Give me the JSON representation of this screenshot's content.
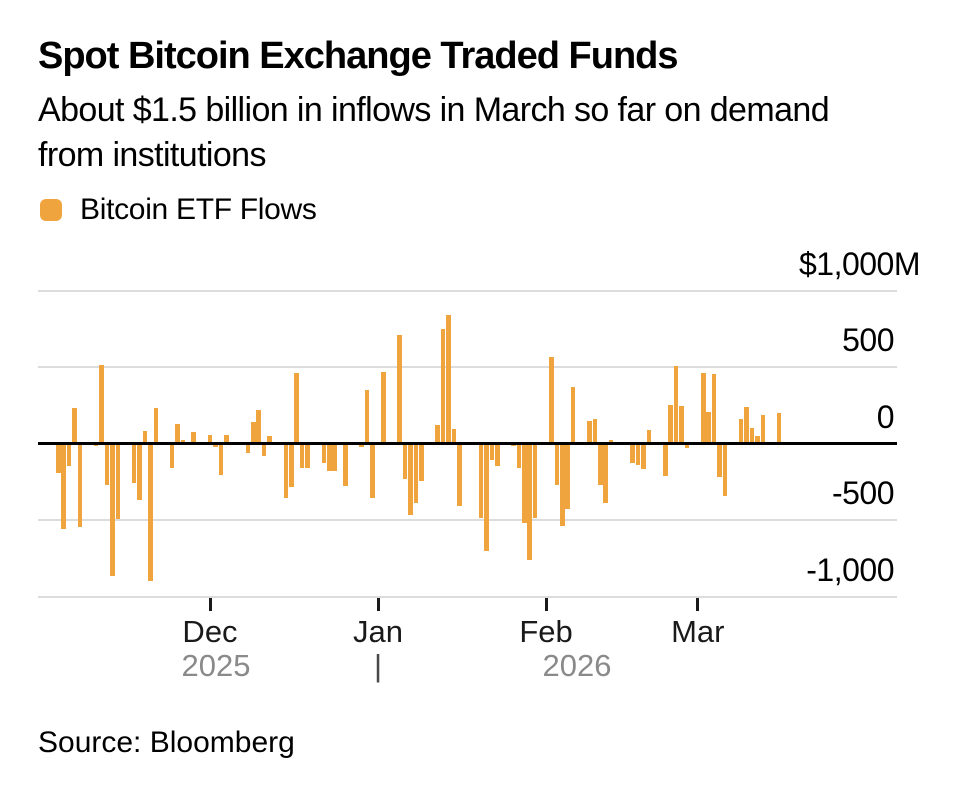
{
  "header": {
    "title": "Spot Bitcoin Exchange Traded Funds",
    "subtitle_lines": [
      "About $1.5 billion in inflows in March so far on demand",
      "from institutions"
    ]
  },
  "legend": {
    "label": "Bitcoin ETF Flows"
  },
  "footer": {
    "source": "Source: Bloomberg"
  },
  "colors": {
    "bar": "#F0A43E",
    "grid": "#DCDCDC",
    "zero_line": "#000000",
    "axis_text": "#1A1A1A",
    "year_text": "#8A8A8A"
  },
  "chart_data": {
    "type": "bar",
    "title": "Spot Bitcoin Exchange Traded Funds",
    "series_name": "Bitcoin ETF Flows",
    "unit": "USD millions (daily net flow)",
    "ylabel": "",
    "xlabel": "",
    "ylim": [
      -1150,
      1075
    ],
    "grid": true,
    "legend_position": "top-left",
    "yticks": [
      {
        "value": 1000,
        "label": "$1,000M"
      },
      {
        "value": 500,
        "label": "500"
      },
      {
        "value": 0,
        "label": "0"
      },
      {
        "value": -500,
        "label": "-500"
      },
      {
        "value": -1000,
        "label": "-1,000"
      }
    ],
    "xticks": [
      {
        "label": "Dec",
        "date": "2025-12-01"
      },
      {
        "label": "Jan",
        "date": "2026-01-01"
      },
      {
        "label": "Feb",
        "date": "2026-02-01"
      },
      {
        "label": "Mar",
        "date": "2026-03-01"
      }
    ],
    "year_row": {
      "left": "2025",
      "divider": "|",
      "right": "2026"
    },
    "points": [
      {
        "date": "2025-11-03",
        "value": -190
      },
      {
        "date": "2025-11-04",
        "value": -560
      },
      {
        "date": "2025-11-05",
        "value": -145
      },
      {
        "date": "2025-11-06",
        "value": 235
      },
      {
        "date": "2025-11-07",
        "value": -545
      },
      {
        "date": "2025-11-10",
        "value": -15
      },
      {
        "date": "2025-11-11",
        "value": 515
      },
      {
        "date": "2025-11-12",
        "value": -272
      },
      {
        "date": "2025-11-13",
        "value": -868
      },
      {
        "date": "2025-11-14",
        "value": -492
      },
      {
        "date": "2025-11-17",
        "value": -256
      },
      {
        "date": "2025-11-18",
        "value": -372
      },
      {
        "date": "2025-11-19",
        "value": 84
      },
      {
        "date": "2025-11-20",
        "value": -897
      },
      {
        "date": "2025-11-21",
        "value": 230
      },
      {
        "date": "2025-11-24",
        "value": -158
      },
      {
        "date": "2025-11-25",
        "value": 130
      },
      {
        "date": "2025-11-26",
        "value": 25
      },
      {
        "date": "2025-11-28",
        "value": 74
      },
      {
        "date": "2025-12-01",
        "value": 56
      },
      {
        "date": "2025-12-02",
        "value": -25
      },
      {
        "date": "2025-12-03",
        "value": -205
      },
      {
        "date": "2025-12-04",
        "value": 58
      },
      {
        "date": "2025-12-05",
        "value": -10
      },
      {
        "date": "2025-12-08",
        "value": -60
      },
      {
        "date": "2025-12-09",
        "value": 142
      },
      {
        "date": "2025-12-10",
        "value": 222
      },
      {
        "date": "2025-12-11",
        "value": -80
      },
      {
        "date": "2025-12-12",
        "value": 46
      },
      {
        "date": "2025-12-15",
        "value": -358
      },
      {
        "date": "2025-12-16",
        "value": -282
      },
      {
        "date": "2025-12-17",
        "value": 458
      },
      {
        "date": "2025-12-18",
        "value": -162
      },
      {
        "date": "2025-12-19",
        "value": -162
      },
      {
        "date": "2025-12-22",
        "value": -130
      },
      {
        "date": "2025-12-23",
        "value": -178
      },
      {
        "date": "2025-12-24",
        "value": -180
      },
      {
        "date": "2025-12-26",
        "value": -276
      },
      {
        "date": "2025-12-29",
        "value": -20
      },
      {
        "date": "2025-12-30",
        "value": 350
      },
      {
        "date": "2025-12-31",
        "value": -356
      },
      {
        "date": "2026-01-02",
        "value": 468
      },
      {
        "date": "2026-01-05",
        "value": 712
      },
      {
        "date": "2026-01-06",
        "value": -235
      },
      {
        "date": "2026-01-07",
        "value": -470
      },
      {
        "date": "2026-01-08",
        "value": -388
      },
      {
        "date": "2026-01-09",
        "value": -246
      },
      {
        "date": "2026-01-12",
        "value": 118
      },
      {
        "date": "2026-01-13",
        "value": 750
      },
      {
        "date": "2026-01-14",
        "value": 842
      },
      {
        "date": "2026-01-15",
        "value": 96
      },
      {
        "date": "2026-01-16",
        "value": -410
      },
      {
        "date": "2026-01-20",
        "value": -486
      },
      {
        "date": "2026-01-21",
        "value": -704
      },
      {
        "date": "2026-01-22",
        "value": -105
      },
      {
        "date": "2026-01-23",
        "value": -148
      },
      {
        "date": "2026-01-26",
        "value": -15
      },
      {
        "date": "2026-01-27",
        "value": -160
      },
      {
        "date": "2026-01-28",
        "value": -519
      },
      {
        "date": "2026-01-29",
        "value": -760
      },
      {
        "date": "2026-01-30",
        "value": -486
      },
      {
        "date": "2026-02-02",
        "value": 564
      },
      {
        "date": "2026-02-03",
        "value": -274
      },
      {
        "date": "2026-02-04",
        "value": -540
      },
      {
        "date": "2026-02-05",
        "value": -427
      },
      {
        "date": "2026-02-06",
        "value": 370
      },
      {
        "date": "2026-02-09",
        "value": 146
      },
      {
        "date": "2026-02-10",
        "value": 161
      },
      {
        "date": "2026-02-11",
        "value": -268
      },
      {
        "date": "2026-02-12",
        "value": -388
      },
      {
        "date": "2026-02-13",
        "value": 25
      },
      {
        "date": "2026-02-17",
        "value": -129
      },
      {
        "date": "2026-02-18",
        "value": -139
      },
      {
        "date": "2026-02-19",
        "value": -168
      },
      {
        "date": "2026-02-20",
        "value": 85
      },
      {
        "date": "2026-02-23",
        "value": -211
      },
      {
        "date": "2026-02-24",
        "value": 253
      },
      {
        "date": "2026-02-25",
        "value": 505
      },
      {
        "date": "2026-02-26",
        "value": 246
      },
      {
        "date": "2026-02-27",
        "value": -30
      },
      {
        "date": "2026-03-02",
        "value": 464
      },
      {
        "date": "2026-03-03",
        "value": 209
      },
      {
        "date": "2026-03-04",
        "value": 455
      },
      {
        "date": "2026-03-05",
        "value": -220
      },
      {
        "date": "2026-03-06",
        "value": -340
      },
      {
        "date": "2026-03-09",
        "value": 161
      },
      {
        "date": "2026-03-10",
        "value": 240
      },
      {
        "date": "2026-03-11",
        "value": 102
      },
      {
        "date": "2026-03-12",
        "value": 52
      },
      {
        "date": "2026-03-13",
        "value": 185
      },
      {
        "date": "2026-03-16",
        "value": 197
      }
    ]
  }
}
